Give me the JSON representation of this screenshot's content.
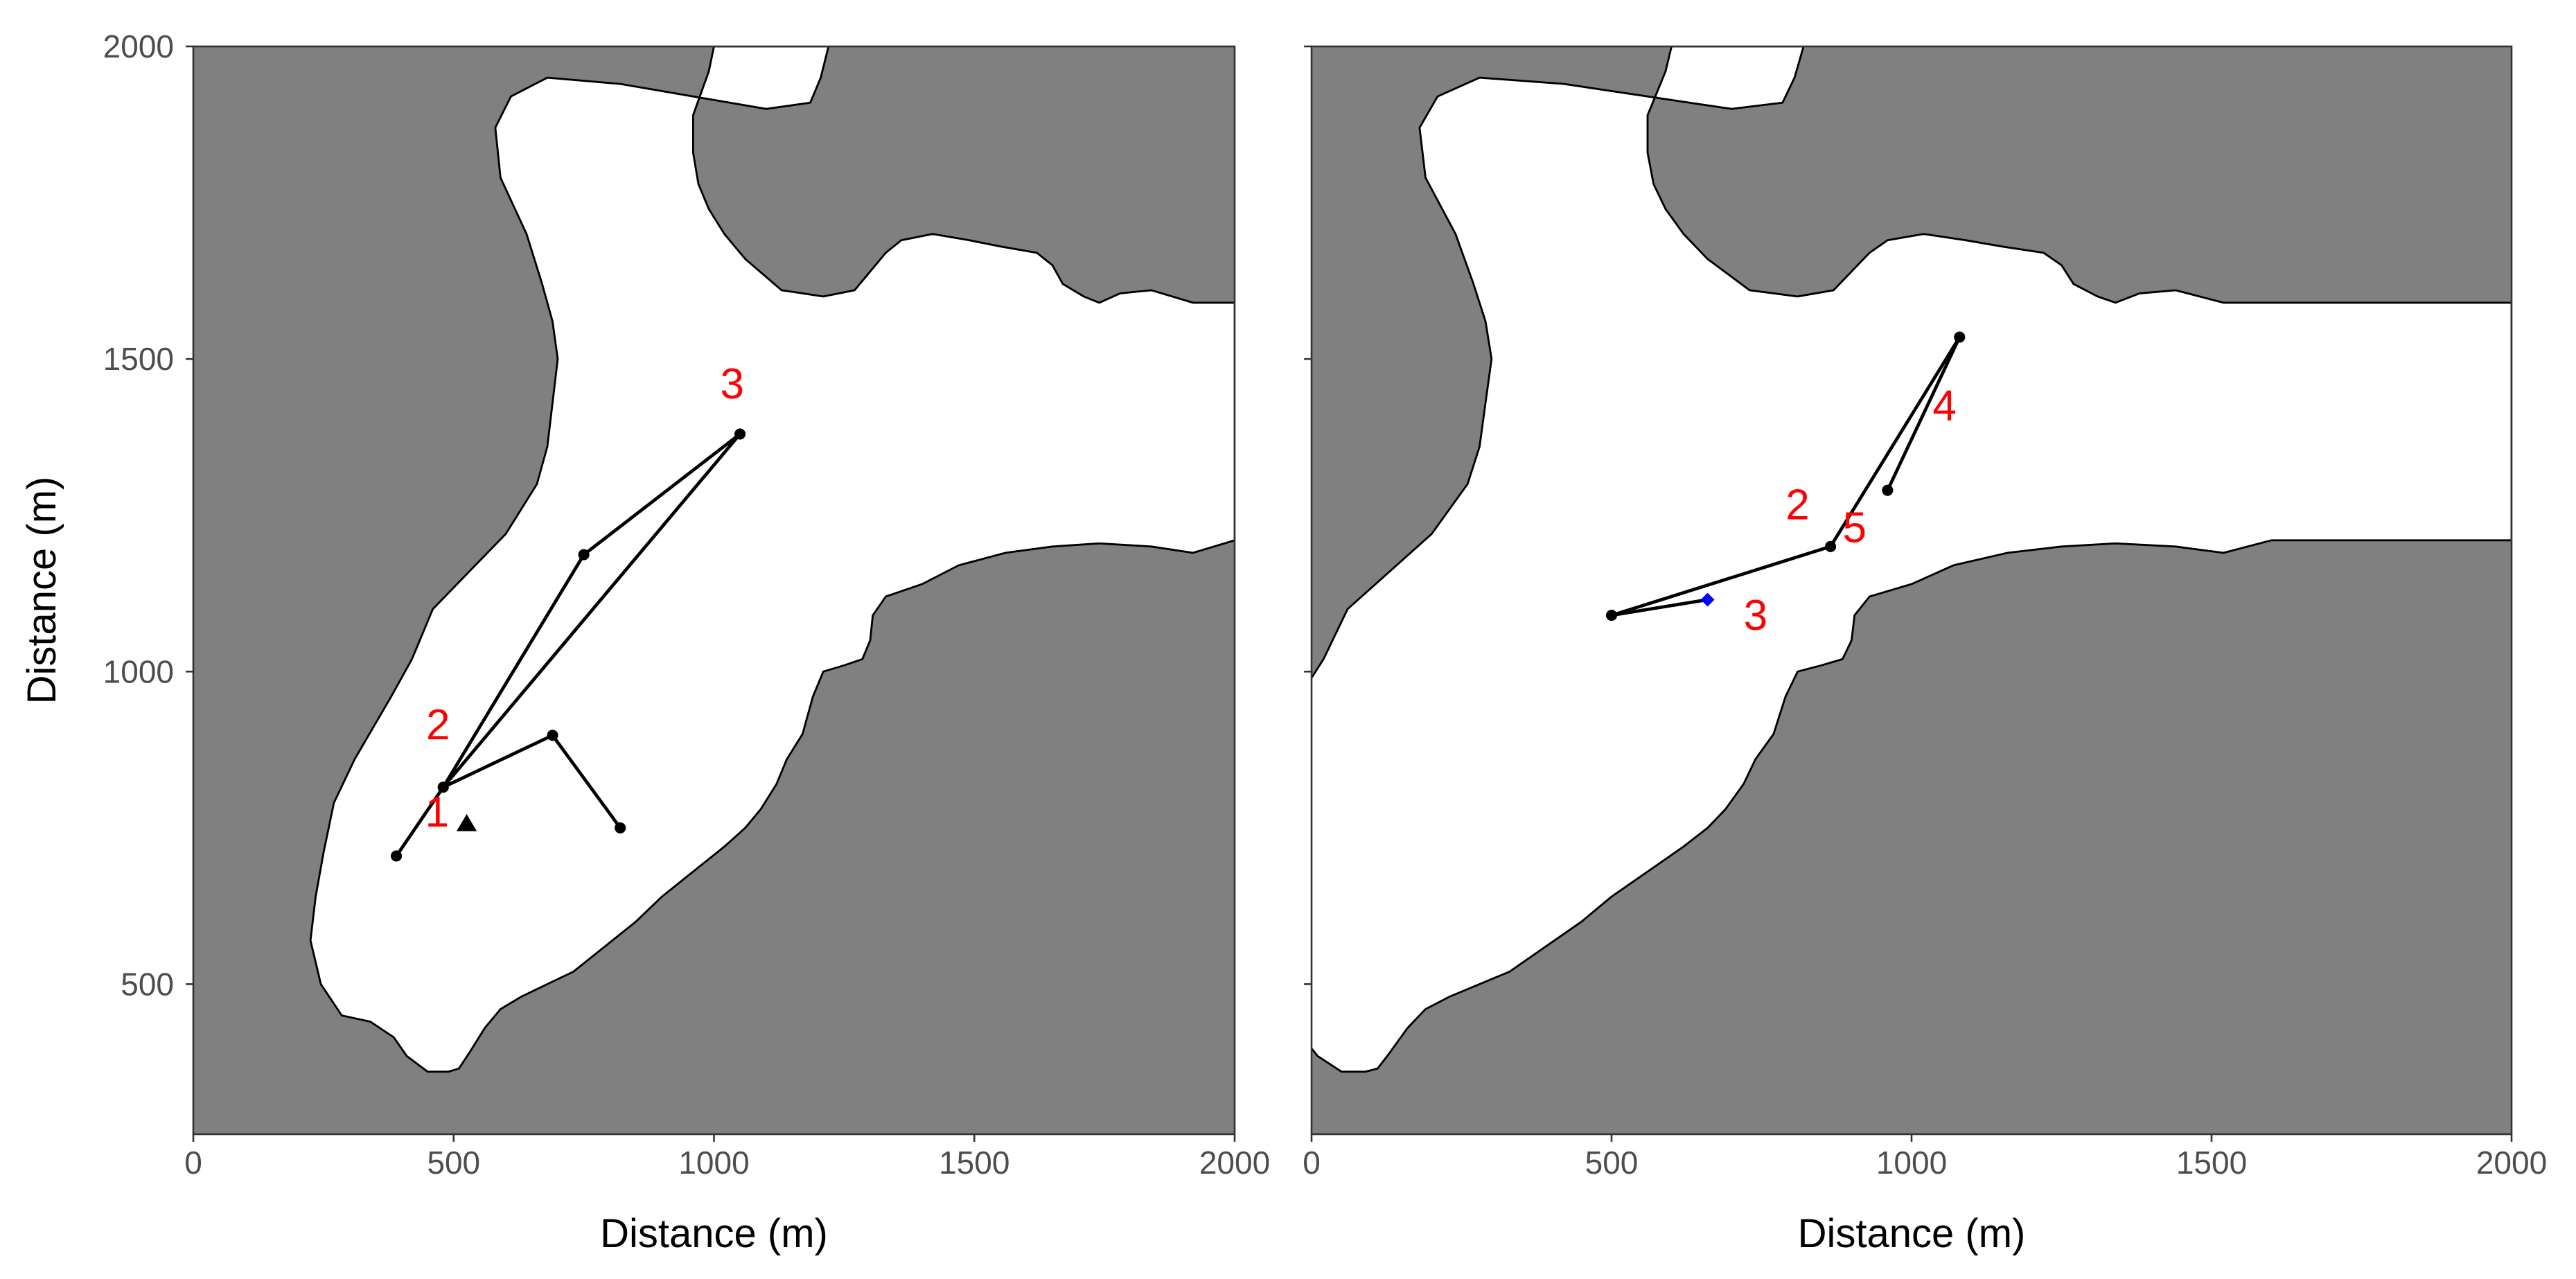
{
  "chart_data": [
    {
      "type": "line",
      "title": "",
      "xlabel": "Distance (m)",
      "ylabel": "Distance (m)",
      "xlim": [
        0,
        2000
      ],
      "ylim": [
        260,
        2000
      ],
      "x_ticks": [
        0,
        500,
        1000,
        1500,
        2000
      ],
      "y_ticks": [
        500,
        1000,
        1500,
        2000
      ],
      "x_tick_labels": [
        "0",
        "500",
        "1000",
        "1500",
        "2000"
      ],
      "y_tick_labels": [
        "500",
        "1000",
        "1500",
        "2000"
      ],
      "grid": false,
      "colors": {
        "land": "#808080",
        "water": "#ffffff",
        "path": "#000000",
        "label": "#ff0000",
        "border": "#333333"
      },
      "land_boundary": [
        [
          1220,
          2000
        ],
        [
          1205,
          1950
        ],
        [
          1185,
          1910
        ],
        [
          1100,
          1900
        ],
        [
          960,
          1920
        ],
        [
          820,
          1940
        ],
        [
          680,
          1950
        ],
        [
          610,
          1920
        ],
        [
          580,
          1870
        ],
        [
          590,
          1790
        ],
        [
          640,
          1700
        ],
        [
          670,
          1620
        ],
        [
          690,
          1560
        ],
        [
          700,
          1500
        ],
        [
          690,
          1430
        ],
        [
          680,
          1360
        ],
        [
          660,
          1300
        ],
        [
          600,
          1220
        ],
        [
          530,
          1160
        ],
        [
          460,
          1100
        ],
        [
          420,
          1020
        ],
        [
          380,
          960
        ],
        [
          310,
          860
        ],
        [
          270,
          790
        ],
        [
          250,
          710
        ],
        [
          235,
          640
        ],
        [
          225,
          570
        ],
        [
          245,
          500
        ],
        [
          285,
          450
        ],
        [
          340,
          440
        ],
        [
          385,
          415
        ],
        [
          410,
          385
        ],
        [
          450,
          360
        ],
        [
          490,
          360
        ],
        [
          510,
          365
        ],
        [
          530,
          390
        ],
        [
          560,
          430
        ],
        [
          590,
          460
        ],
        [
          630,
          480
        ],
        [
          680,
          500
        ],
        [
          730,
          520
        ],
        [
          790,
          560
        ],
        [
          850,
          600
        ],
        [
          900,
          640
        ],
        [
          960,
          680
        ],
        [
          1020,
          720
        ],
        [
          1060,
          750
        ],
        [
          1090,
          780
        ],
        [
          1120,
          820
        ],
        [
          1140,
          860
        ],
        [
          1170,
          900
        ],
        [
          1190,
          960
        ],
        [
          1210,
          1000
        ],
        [
          1250,
          1010
        ],
        [
          1285,
          1020
        ],
        [
          1300,
          1050
        ],
        [
          1305,
          1090
        ],
        [
          1330,
          1120
        ],
        [
          1400,
          1140
        ],
        [
          1470,
          1170
        ],
        [
          1560,
          1190
        ],
        [
          1650,
          1200
        ],
        [
          1740,
          1205
        ],
        [
          1840,
          1200
        ],
        [
          1920,
          1190
        ],
        [
          2000,
          1210
        ],
        [
          2000,
          1590
        ],
        [
          1920,
          1590
        ],
        [
          1840,
          1610
        ],
        [
          1780,
          1605
        ],
        [
          1740,
          1590
        ],
        [
          1710,
          1600
        ],
        [
          1670,
          1620
        ],
        [
          1650,
          1650
        ],
        [
          1620,
          1670
        ],
        [
          1550,
          1680
        ],
        [
          1490,
          1690
        ],
        [
          1420,
          1700
        ],
        [
          1360,
          1690
        ],
        [
          1330,
          1670
        ],
        [
          1300,
          1640
        ],
        [
          1270,
          1610
        ],
        [
          1210,
          1600
        ],
        [
          1130,
          1610
        ],
        [
          1060,
          1660
        ],
        [
          1020,
          1700
        ],
        [
          990,
          1740
        ],
        [
          970,
          1780
        ],
        [
          960,
          1830
        ],
        [
          960,
          1890
        ],
        [
          990,
          1960
        ],
        [
          1000,
          2000
        ]
      ],
      "series": [
        {
          "marker": "circle",
          "x": [
            390,
            480,
            690,
            820,
            690,
            480,
            750,
            1050,
            480,
            390
          ],
          "y": [
            705,
            815,
            898,
            750,
            898,
            815,
            1187,
            1380,
            815,
            705
          ]
        },
        {
          "marker": "triangle",
          "x": [
            525
          ],
          "y": [
            755
          ]
        }
      ],
      "annotations": [
        {
          "text": "1",
          "x": 468,
          "y": 770
        },
        {
          "text": "2",
          "x": 470,
          "y": 910
        },
        {
          "text": "3",
          "x": 1035,
          "y": 1455
        }
      ]
    },
    {
      "type": "line",
      "title": "",
      "xlabel": "Distance (m)",
      "ylabel": "",
      "xlim": [
        0,
        2000
      ],
      "ylim": [
        260,
        2000
      ],
      "x_ticks": [
        0,
        500,
        1000,
        1500,
        2000
      ],
      "y_ticks": [
        500,
        1000,
        1500,
        2000
      ],
      "x_tick_labels": [
        "0",
        "500",
        "1000",
        "1500",
        "2000"
      ],
      "y_tick_labels": [],
      "grid": false,
      "colors": {
        "land": "#808080",
        "water": "#ffffff",
        "path": "#000000",
        "label": "#ff0000",
        "marker_diamond": "#0000ff",
        "border": "#333333"
      },
      "land_boundary": [
        [
          820,
          2000
        ],
        [
          805,
          1950
        ],
        [
          785,
          1910
        ],
        [
          700,
          1900
        ],
        [
          560,
          1920
        ],
        [
          420,
          1940
        ],
        [
          280,
          1950
        ],
        [
          210,
          1920
        ],
        [
          180,
          1870
        ],
        [
          190,
          1790
        ],
        [
          240,
          1700
        ],
        [
          270,
          1620
        ],
        [
          290,
          1560
        ],
        [
          300,
          1500
        ],
        [
          290,
          1430
        ],
        [
          280,
          1360
        ],
        [
          260,
          1300
        ],
        [
          200,
          1220
        ],
        [
          130,
          1160
        ],
        [
          60,
          1100
        ],
        [
          20,
          1020
        ],
        [
          -20,
          960
        ],
        [
          -90,
          860
        ],
        [
          -130,
          790
        ],
        [
          -150,
          710
        ],
        [
          -165,
          640
        ],
        [
          -175,
          570
        ],
        [
          -155,
          500
        ],
        [
          -115,
          450
        ],
        [
          -60,
          440
        ],
        [
          -15,
          415
        ],
        [
          10,
          385
        ],
        [
          50,
          360
        ],
        [
          90,
          360
        ],
        [
          110,
          365
        ],
        [
          130,
          390
        ],
        [
          160,
          430
        ],
        [
          190,
          460
        ],
        [
          230,
          480
        ],
        [
          280,
          500
        ],
        [
          330,
          520
        ],
        [
          390,
          560
        ],
        [
          450,
          600
        ],
        [
          500,
          640
        ],
        [
          560,
          680
        ],
        [
          620,
          720
        ],
        [
          660,
          750
        ],
        [
          690,
          780
        ],
        [
          720,
          820
        ],
        [
          740,
          860
        ],
        [
          770,
          900
        ],
        [
          790,
          960
        ],
        [
          810,
          1000
        ],
        [
          850,
          1010
        ],
        [
          885,
          1020
        ],
        [
          900,
          1050
        ],
        [
          905,
          1090
        ],
        [
          930,
          1120
        ],
        [
          1000,
          1140
        ],
        [
          1070,
          1170
        ],
        [
          1160,
          1190
        ],
        [
          1250,
          1200
        ],
        [
          1340,
          1205
        ],
        [
          1440,
          1200
        ],
        [
          1520,
          1190
        ],
        [
          1600,
          1210
        ],
        [
          2000,
          1210
        ],
        [
          2000,
          1590
        ],
        [
          1520,
          1590
        ],
        [
          1440,
          1610
        ],
        [
          1380,
          1605
        ],
        [
          1340,
          1590
        ],
        [
          1310,
          1600
        ],
        [
          1270,
          1620
        ],
        [
          1250,
          1650
        ],
        [
          1220,
          1670
        ],
        [
          1150,
          1680
        ],
        [
          1090,
          1690
        ],
        [
          1020,
          1700
        ],
        [
          960,
          1690
        ],
        [
          930,
          1670
        ],
        [
          900,
          1640
        ],
        [
          870,
          1610
        ],
        [
          810,
          1600
        ],
        [
          730,
          1610
        ],
        [
          660,
          1660
        ],
        [
          620,
          1700
        ],
        [
          590,
          1740
        ],
        [
          570,
          1780
        ],
        [
          560,
          1830
        ],
        [
          560,
          1890
        ],
        [
          590,
          1960
        ],
        [
          600,
          2000
        ]
      ],
      "series": [
        {
          "marker": "circle",
          "x": [
            500,
            865,
            1080,
            960
          ],
          "y": [
            1090,
            1200,
            1535,
            1290
          ]
        },
        {
          "marker": "diamond",
          "x": [
            660
          ],
          "y": [
            1115
          ]
        }
      ],
      "path_lines": [
        {
          "x": [
            500,
            660
          ],
          "y": [
            1090,
            1115
          ]
        }
      ],
      "annotations": [
        {
          "text": "2",
          "x": 810,
          "y": 1262
        },
        {
          "text": "3",
          "x": 740,
          "y": 1085
        },
        {
          "text": "4",
          "x": 1055,
          "y": 1420
        },
        {
          "text": "5",
          "x": 905,
          "y": 1225
        }
      ]
    }
  ]
}
